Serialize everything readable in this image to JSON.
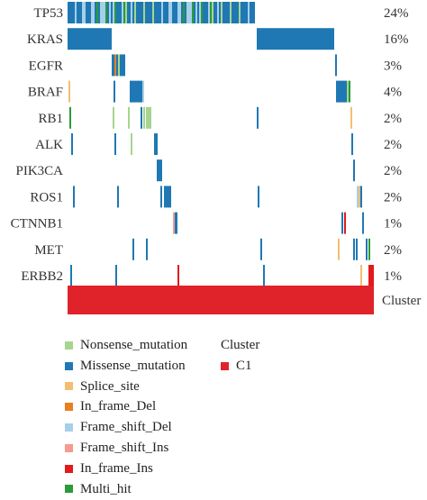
{
  "chart_data": {
    "type": "oncoprint",
    "genes": [
      {
        "name": "TP53",
        "percent": "24%"
      },
      {
        "name": "KRAS",
        "percent": "16%"
      },
      {
        "name": "EGFR",
        "percent": "3%"
      },
      {
        "name": "BRAF",
        "percent": "4%"
      },
      {
        "name": "RB1",
        "percent": "2%"
      },
      {
        "name": "ALK",
        "percent": "2%"
      },
      {
        "name": "PIK3CA",
        "percent": "2%"
      },
      {
        "name": "ROS1",
        "percent": "2%"
      },
      {
        "name": "CTNNB1",
        "percent": "1%"
      },
      {
        "name": "MET",
        "percent": "2%"
      },
      {
        "name": "ERBB2",
        "percent": "1%"
      }
    ],
    "mutation_types": [
      {
        "name": "Nonsense_mutation",
        "color": "#a6d58f"
      },
      {
        "name": "Missense_mutation",
        "color": "#1f78b4"
      },
      {
        "name": "Splice_site",
        "color": "#f2bf72"
      },
      {
        "name": "In_frame_Del",
        "color": "#e8801e"
      },
      {
        "name": "Frame_shift_Del",
        "color": "#a6cfe8"
      },
      {
        "name": "Frame_shift_Ins",
        "color": "#f49a8e"
      },
      {
        "name": "In_frame_Ins",
        "color": "#e31a1c"
      },
      {
        "name": "Multi_hit",
        "color": "#2b9a3a"
      }
    ],
    "cluster_track": {
      "label": "Cluster",
      "color": "#e0222a"
    },
    "cluster_legend": {
      "title": "Cluster",
      "items": [
        {
          "name": "C1",
          "color": "#e0222a"
        }
      ]
    }
  }
}
